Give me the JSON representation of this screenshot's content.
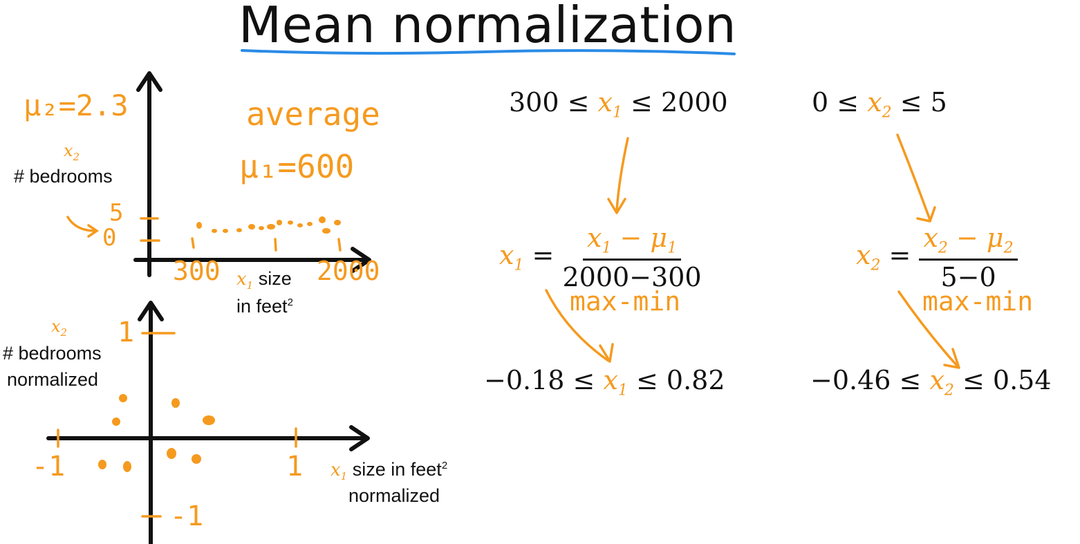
{
  "title": "Mean normalization",
  "top_graph": {
    "y_var": "x",
    "y_var_sub": "2",
    "y_label": "# bedrooms",
    "x_var": "x",
    "x_var_sub": "1",
    "x_label_line1": "size",
    "x_label_line2": "in feet",
    "x_label_sup": "2",
    "mu2": "μ₂=2.3",
    "average": "average",
    "mu1": "μ₁=600",
    "tick_5": "5",
    "tick_0": "0",
    "tick_300": "300",
    "tick_2000": "2000"
  },
  "bottom_graph": {
    "y_var": "x",
    "y_var_sub": "2",
    "y_label_line1": "# bedrooms",
    "y_label_line2": "normalized",
    "x_var": "x",
    "x_var_sub": "1",
    "x_label_line1": "size in feet",
    "x_label_sup": "2",
    "x_label_line2": "normalized",
    "tick_y1": "1",
    "tick_ym1": "-1",
    "tick_xm1": "-1",
    "tick_x1": "1"
  },
  "formula_x1": {
    "range_lo": "300 ≤ ",
    "var": "x",
    "sub": "1",
    "range_hi": " ≤ 2000",
    "lhs_var": "x",
    "lhs_sub": "1",
    "eq": "=",
    "num_var": "x",
    "num_sub": "1",
    "num_minus": " − ",
    "num_mu": "μ",
    "num_mu_sub": "1",
    "den": "2000−300",
    "note": "max-min",
    "result_lo": "−0.18 ≤ ",
    "result_var": "x",
    "result_sub": "1",
    "result_hi": " ≤ 0.82"
  },
  "formula_x2": {
    "range_lo": "0 ≤ ",
    "var": "x",
    "sub": "2",
    "range_hi": " ≤ 5",
    "lhs_var": "x",
    "lhs_sub": "2",
    "eq": "=",
    "num_var": "x",
    "num_sub": "2",
    "num_minus": " − ",
    "num_mu": "μ",
    "num_mu_sub": "2",
    "den": "5−0",
    "note": "max-min",
    "result_lo": "−0.46 ≤ ",
    "result_var": "x",
    "result_sub": "2",
    "result_hi": " ≤ 0.54"
  },
  "colors": {
    "accent": "#f59a1f",
    "ink": "#111111",
    "underline": "#2a8be6"
  }
}
